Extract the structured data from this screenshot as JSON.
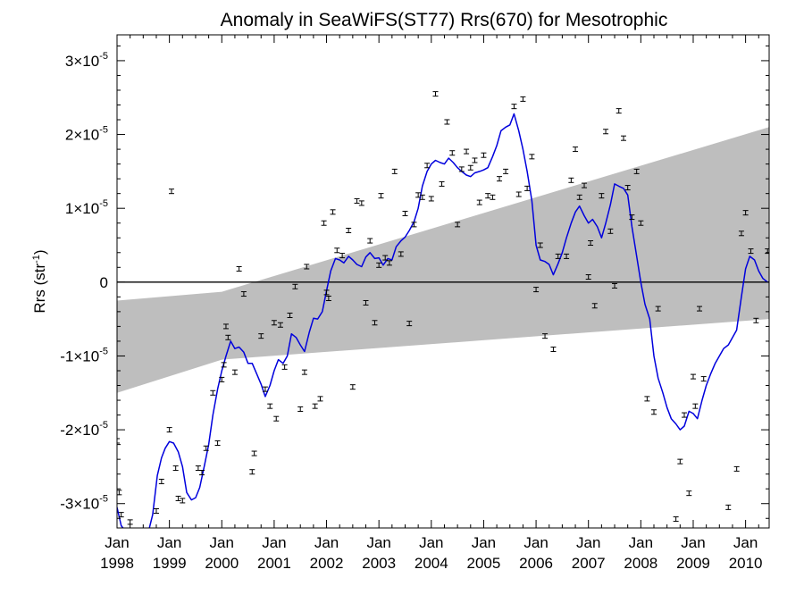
{
  "chart_data": {
    "type": "line",
    "title": "Anomaly in SeaWiFS(ST77) Rrs(670) for Mesotrophic",
    "ylabel": "Rrs (str",
    "ylabel_sup": "-1",
    "ylabel_close": ")",
    "xlim": [
      1998.0,
      2010.45
    ],
    "ylim": [
      -3.33e-05,
      3.35e-05
    ],
    "x_ticks": [
      {
        "x": 1998,
        "month": "Jan",
        "year": "1998"
      },
      {
        "x": 1999,
        "month": "Jan",
        "year": "1999"
      },
      {
        "x": 2000,
        "month": "Jan",
        "year": "2000"
      },
      {
        "x": 2001,
        "month": "Jan",
        "year": "2001"
      },
      {
        "x": 2002,
        "month": "Jan",
        "year": "2002"
      },
      {
        "x": 2003,
        "month": "Jan",
        "year": "2003"
      },
      {
        "x": 2004,
        "month": "Jan",
        "year": "2004"
      },
      {
        "x": 2005,
        "month": "Jan",
        "year": "2005"
      },
      {
        "x": 2006,
        "month": "Jan",
        "year": "2006"
      },
      {
        "x": 2007,
        "month": "Jan",
        "year": "2007"
      },
      {
        "x": 2008,
        "month": "Jan",
        "year": "2008"
      },
      {
        "x": 2009,
        "month": "Jan",
        "year": "2009"
      },
      {
        "x": 2010,
        "month": "Jan",
        "year": "2010"
      }
    ],
    "y_ticks": [
      {
        "y": 3e-05,
        "mant": "3×10",
        "exp": "-5"
      },
      {
        "y": 2e-05,
        "mant": "2×10",
        "exp": "-5"
      },
      {
        "y": 1e-05,
        "mant": "1×10",
        "exp": "-5"
      },
      {
        "y": 0,
        "mant": "0",
        "exp": ""
      },
      {
        "y": -1e-05,
        "mant": "-1×10",
        "exp": "-5"
      },
      {
        "y": -2e-05,
        "mant": "-2×10",
        "exp": "-5"
      },
      {
        "y": -3e-05,
        "mant": "-3×10",
        "exp": "-5"
      }
    ],
    "zero_line": 0,
    "trend_band": {
      "x": [
        1998.0,
        2000.0,
        2010.45
      ],
      "upper": [
        -2.5e-06,
        -1.3e-06,
        2.1e-05
      ],
      "lower": [
        -1.5e-05,
        -1.05e-05,
        -5e-06
      ]
    },
    "points": [
      [
        1998.0,
        -2.15e-05
      ],
      [
        1998.04,
        -2.85e-05
      ],
      [
        1998.08,
        -3.15e-05
      ],
      [
        1998.25,
        -3.25e-05
      ],
      [
        1998.75,
        -3.1e-05
      ],
      [
        1998.85,
        -2.7e-05
      ],
      [
        1999.0,
        -2e-05
      ],
      [
        1999.04,
        1.23e-05
      ],
      [
        1999.12,
        -2.52e-05
      ],
      [
        1999.17,
        -2.93e-05
      ],
      [
        1999.25,
        -2.96e-05
      ],
      [
        1999.55,
        -2.52e-05
      ],
      [
        1999.62,
        -2.58e-05
      ],
      [
        1999.7,
        -2.25e-05
      ],
      [
        1999.83,
        -1.5e-05
      ],
      [
        1999.92,
        -2.18e-05
      ],
      [
        2000.0,
        -1.32e-05
      ],
      [
        2000.04,
        -1.12e-05
      ],
      [
        2000.08,
        -6e-06
      ],
      [
        2000.12,
        -7.5e-06
      ],
      [
        2000.25,
        -1.22e-05
      ],
      [
        2000.33,
        1.8e-06
      ],
      [
        2000.42,
        -1.6e-06
      ],
      [
        2000.58,
        -2.57e-05
      ],
      [
        2000.62,
        -2.32e-05
      ],
      [
        2000.75,
        -7.3e-06
      ],
      [
        2000.83,
        -1.45e-05
      ],
      [
        2000.92,
        -1.68e-05
      ],
      [
        2001.0,
        -5.5e-06
      ],
      [
        2001.04,
        -1.85e-05
      ],
      [
        2001.12,
        -5.8e-06
      ],
      [
        2001.2,
        -1.15e-05
      ],
      [
        2001.3,
        -4.5e-06
      ],
      [
        2001.4,
        -6e-07
      ],
      [
        2001.5,
        -1.72e-05
      ],
      [
        2001.58,
        -1.22e-05
      ],
      [
        2001.62,
        2.1e-06
      ],
      [
        2001.78,
        -1.68e-05
      ],
      [
        2001.88,
        -1.58e-05
      ],
      [
        2001.95,
        8e-06
      ],
      [
        2002.0,
        -1.4e-06
      ],
      [
        2002.04,
        -2.2e-06
      ],
      [
        2002.12,
        9.5e-06
      ],
      [
        2002.2,
        4.3e-06
      ],
      [
        2002.3,
        3.6e-06
      ],
      [
        2002.42,
        7e-06
      ],
      [
        2002.5,
        -1.42e-05
      ],
      [
        2002.58,
        1.1e-05
      ],
      [
        2002.67,
        1.07e-05
      ],
      [
        2002.75,
        -2.8e-06
      ],
      [
        2002.83,
        5.6e-06
      ],
      [
        2002.92,
        -5.5e-06
      ],
      [
        2003.0,
        2.3e-06
      ],
      [
        2003.04,
        1.17e-05
      ],
      [
        2003.12,
        3.3e-06
      ],
      [
        2003.2,
        2.6e-06
      ],
      [
        2003.3,
        1.5e-05
      ],
      [
        2003.42,
        3.8e-06
      ],
      [
        2003.5,
        9.3e-06
      ],
      [
        2003.58,
        -5.6e-06
      ],
      [
        2003.67,
        7.8e-06
      ],
      [
        2003.75,
        1.18e-05
      ],
      [
        2003.83,
        1.15e-05
      ],
      [
        2003.92,
        1.58e-05
      ],
      [
        2004.0,
        1.13e-05
      ],
      [
        2004.08,
        2.55e-05
      ],
      [
        2004.2,
        1.33e-05
      ],
      [
        2004.3,
        2.17e-05
      ],
      [
        2004.4,
        1.75e-05
      ],
      [
        2004.5,
        7.8e-06
      ],
      [
        2004.58,
        1.53e-05
      ],
      [
        2004.67,
        1.77e-05
      ],
      [
        2004.75,
        1.55e-05
      ],
      [
        2004.83,
        1.65e-05
      ],
      [
        2004.92,
        1.08e-05
      ],
      [
        2005.0,
        1.72e-05
      ],
      [
        2005.08,
        1.17e-05
      ],
      [
        2005.17,
        1.15e-05
      ],
      [
        2005.3,
        1.4e-05
      ],
      [
        2005.42,
        1.5e-05
      ],
      [
        2005.58,
        2.38e-05
      ],
      [
        2005.67,
        1.19e-05
      ],
      [
        2005.75,
        2.48e-05
      ],
      [
        2005.83,
        1.27e-05
      ],
      [
        2005.92,
        1.7e-05
      ],
      [
        2006.0,
        -1e-06
      ],
      [
        2006.08,
        5e-06
      ],
      [
        2006.17,
        -7.3e-06
      ],
      [
        2006.33,
        -9.1e-06
      ],
      [
        2006.42,
        3.5e-06
      ],
      [
        2006.58,
        3.5e-06
      ],
      [
        2006.67,
        1.38e-05
      ],
      [
        2006.75,
        1.8e-05
      ],
      [
        2006.83,
        1.15e-05
      ],
      [
        2006.92,
        1.31e-05
      ],
      [
        2007.0,
        7e-07
      ],
      [
        2007.04,
        5.3e-06
      ],
      [
        2007.12,
        -3.2e-06
      ],
      [
        2007.25,
        1.17e-05
      ],
      [
        2007.33,
        2.04e-05
      ],
      [
        2007.42,
        6.9e-06
      ],
      [
        2007.5,
        -5e-07
      ],
      [
        2007.58,
        2.32e-05
      ],
      [
        2007.67,
        1.95e-05
      ],
      [
        2007.75,
        1.28e-05
      ],
      [
        2007.83,
        8.8e-06
      ],
      [
        2007.92,
        1.5e-05
      ],
      [
        2008.0,
        8e-06
      ],
      [
        2008.12,
        -1.58e-05
      ],
      [
        2008.25,
        -1.76e-05
      ],
      [
        2008.33,
        -3.6e-06
      ],
      [
        2008.67,
        -3.21e-05
      ],
      [
        2008.75,
        -2.43e-05
      ],
      [
        2008.83,
        -1.8e-05
      ],
      [
        2008.92,
        -2.86e-05
      ],
      [
        2009.0,
        -1.28e-05
      ],
      [
        2009.04,
        -1.68e-05
      ],
      [
        2009.12,
        -3.6e-06
      ],
      [
        2009.2,
        -1.31e-05
      ],
      [
        2009.67,
        -3.05e-05
      ],
      [
        2009.83,
        -2.53e-05
      ],
      [
        2009.92,
        6.6e-06
      ],
      [
        2010.0,
        9.4e-06
      ],
      [
        2010.1,
        4.2e-06
      ],
      [
        2010.2,
        -5.2e-06
      ],
      [
        2010.42,
        4.2e-06
      ]
    ],
    "curve_color": "#0000dd",
    "curve": [
      [
        1998.0,
        -3.05e-05
      ],
      [
        1998.08,
        -3.3e-05
      ],
      [
        1998.17,
        -3.38e-05
      ],
      [
        1998.6,
        -3.38e-05
      ],
      [
        1998.68,
        -3.15e-05
      ],
      [
        1998.77,
        -2.62e-05
      ],
      [
        1998.85,
        -2.38e-05
      ],
      [
        1998.92,
        -2.25e-05
      ],
      [
        1999.0,
        -2.16e-05
      ],
      [
        1999.08,
        -2.18e-05
      ],
      [
        1999.17,
        -2.3e-05
      ],
      [
        1999.25,
        -2.5e-05
      ],
      [
        1999.33,
        -2.85e-05
      ],
      [
        1999.42,
        -2.95e-05
      ],
      [
        1999.5,
        -2.92e-05
      ],
      [
        1999.58,
        -2.78e-05
      ],
      [
        1999.67,
        -2.48e-05
      ],
      [
        1999.75,
        -2.2e-05
      ],
      [
        1999.83,
        -1.8e-05
      ],
      [
        1999.92,
        -1.45e-05
      ],
      [
        2000.0,
        -1.2e-05
      ],
      [
        2000.08,
        -1e-05
      ],
      [
        2000.17,
        -8e-06
      ],
      [
        2000.25,
        -9e-06
      ],
      [
        2000.33,
        -8.8e-06
      ],
      [
        2000.42,
        -9.5e-06
      ],
      [
        2000.5,
        -1.1e-05
      ],
      [
        2000.58,
        -1.1e-05
      ],
      [
        2000.67,
        -1.25e-05
      ],
      [
        2000.75,
        -1.38e-05
      ],
      [
        2000.83,
        -1.55e-05
      ],
      [
        2000.92,
        -1.4e-05
      ],
      [
        2001.0,
        -1.2e-05
      ],
      [
        2001.08,
        -1.05e-05
      ],
      [
        2001.17,
        -1.1e-05
      ],
      [
        2001.25,
        -1e-05
      ],
      [
        2001.33,
        -7e-06
      ],
      [
        2001.42,
        -7.5e-06
      ],
      [
        2001.5,
        -8.5e-06
      ],
      [
        2001.58,
        -9.4e-06
      ],
      [
        2001.67,
        -6.8e-06
      ],
      [
        2001.75,
        -4.9e-06
      ],
      [
        2001.83,
        -5e-06
      ],
      [
        2001.92,
        -4e-06
      ],
      [
        2002.0,
        -1.2e-06
      ],
      [
        2002.08,
        1.5e-06
      ],
      [
        2002.17,
        3.2e-06
      ],
      [
        2002.25,
        3e-06
      ],
      [
        2002.33,
        2.6e-06
      ],
      [
        2002.42,
        3.5e-06
      ],
      [
        2002.5,
        3e-06
      ],
      [
        2002.58,
        2.4e-06
      ],
      [
        2002.67,
        2.1e-06
      ],
      [
        2002.75,
        3.4e-06
      ],
      [
        2002.83,
        4e-06
      ],
      [
        2002.92,
        3.2e-06
      ],
      [
        2003.0,
        3.3e-06
      ],
      [
        2003.08,
        2.3e-06
      ],
      [
        2003.17,
        3.2e-06
      ],
      [
        2003.25,
        3e-06
      ],
      [
        2003.33,
        4.8e-06
      ],
      [
        2003.42,
        5.6e-06
      ],
      [
        2003.5,
        6.1e-06
      ],
      [
        2003.58,
        7e-06
      ],
      [
        2003.67,
        8.2e-06
      ],
      [
        2003.75,
        1e-05
      ],
      [
        2003.83,
        1.3e-05
      ],
      [
        2003.92,
        1.5e-05
      ],
      [
        2004.0,
        1.6e-05
      ],
      [
        2004.08,
        1.65e-05
      ],
      [
        2004.17,
        1.62e-05
      ],
      [
        2004.25,
        1.6e-05
      ],
      [
        2004.33,
        1.68e-05
      ],
      [
        2004.42,
        1.62e-05
      ],
      [
        2004.5,
        1.55e-05
      ],
      [
        2004.58,
        1.5e-05
      ],
      [
        2004.67,
        1.45e-05
      ],
      [
        2004.75,
        1.43e-05
      ],
      [
        2004.83,
        1.48e-05
      ],
      [
        2004.92,
        1.5e-05
      ],
      [
        2005.0,
        1.52e-05
      ],
      [
        2005.08,
        1.55e-05
      ],
      [
        2005.17,
        1.7e-05
      ],
      [
        2005.25,
        1.85e-05
      ],
      [
        2005.33,
        2.05e-05
      ],
      [
        2005.42,
        2.1e-05
      ],
      [
        2005.5,
        2.13e-05
      ],
      [
        2005.58,
        2.28e-05
      ],
      [
        2005.67,
        2.05e-05
      ],
      [
        2005.75,
        1.8e-05
      ],
      [
        2005.83,
        1.5e-05
      ],
      [
        2005.92,
        1.1e-05
      ],
      [
        2006.0,
        5e-06
      ],
      [
        2006.08,
        3e-06
      ],
      [
        2006.17,
        2.8e-06
      ],
      [
        2006.25,
        2.4e-06
      ],
      [
        2006.33,
        1e-06
      ],
      [
        2006.42,
        2.5e-06
      ],
      [
        2006.5,
        4e-06
      ],
      [
        2006.58,
        6e-06
      ],
      [
        2006.67,
        8e-06
      ],
      [
        2006.75,
        9.5e-06
      ],
      [
        2006.83,
        1.03e-05
      ],
      [
        2006.92,
        9e-06
      ],
      [
        2007.0,
        8e-06
      ],
      [
        2007.08,
        8.5e-06
      ],
      [
        2007.17,
        7.5e-06
      ],
      [
        2007.25,
        6e-06
      ],
      [
        2007.33,
        8e-06
      ],
      [
        2007.42,
        1.05e-05
      ],
      [
        2007.5,
        1.33e-05
      ],
      [
        2007.58,
        1.3e-05
      ],
      [
        2007.67,
        1.27e-05
      ],
      [
        2007.75,
        1.18e-05
      ],
      [
        2007.83,
        7.5e-06
      ],
      [
        2007.92,
        3.5e-06
      ],
      [
        2008.0,
        0
      ],
      [
        2008.08,
        -3e-06
      ],
      [
        2008.17,
        -5e-06
      ],
      [
        2008.25,
        -1e-05
      ],
      [
        2008.33,
        -1.3e-05
      ],
      [
        2008.42,
        -1.5e-05
      ],
      [
        2008.5,
        -1.7e-05
      ],
      [
        2008.58,
        -1.85e-05
      ],
      [
        2008.67,
        -1.92e-05
      ],
      [
        2008.75,
        -2e-05
      ],
      [
        2008.83,
        -1.95e-05
      ],
      [
        2008.92,
        -1.75e-05
      ],
      [
        2009.0,
        -1.78e-05
      ],
      [
        2009.08,
        -1.85e-05
      ],
      [
        2009.17,
        -1.6e-05
      ],
      [
        2009.25,
        -1.4e-05
      ],
      [
        2009.33,
        -1.25e-05
      ],
      [
        2009.42,
        -1.1e-05
      ],
      [
        2009.5,
        -1e-05
      ],
      [
        2009.58,
        -9e-06
      ],
      [
        2009.67,
        -8.5e-06
      ],
      [
        2009.75,
        -7.5e-06
      ],
      [
        2009.83,
        -6.5e-06
      ],
      [
        2009.92,
        -2e-06
      ],
      [
        2010.0,
        1.8e-06
      ],
      [
        2010.08,
        3.5e-06
      ],
      [
        2010.17,
        3e-06
      ],
      [
        2010.25,
        1.5e-06
      ],
      [
        2010.33,
        5e-07
      ],
      [
        2010.42,
        0
      ]
    ]
  }
}
